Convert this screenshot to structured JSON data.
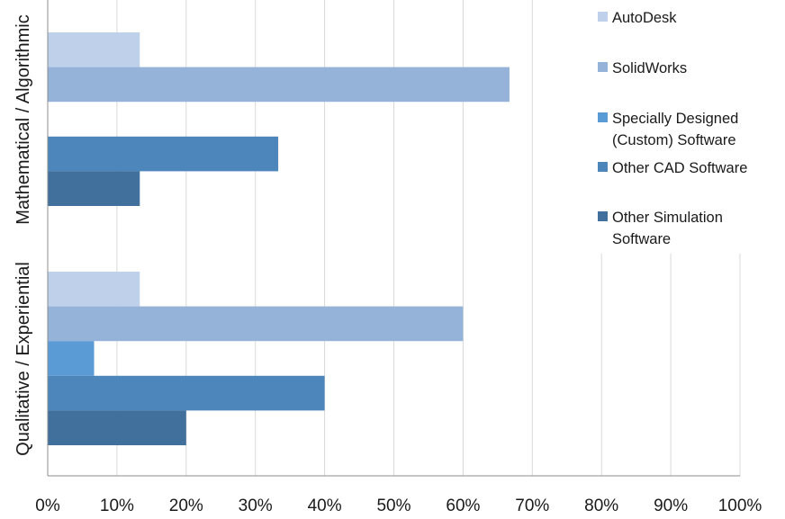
{
  "chart_data": {
    "type": "bar",
    "orientation": "horizontal",
    "title": "",
    "xlabel": "",
    "ylabel": "",
    "xlim": [
      0,
      100
    ],
    "x_ticks": [
      "0%",
      "10%",
      "20%",
      "30%",
      "40%",
      "50%",
      "60%",
      "70%",
      "80%",
      "90%",
      "100%"
    ],
    "grid": true,
    "legend_position": "top-right",
    "categories": [
      "Mathematical / Algorithmic",
      "Qualitative / Experiential"
    ],
    "series": [
      {
        "name": "AutoDesk",
        "legend_lines": [
          "AutoDesk"
        ],
        "color": "#bed0ea",
        "values": [
          13.3,
          13.3
        ]
      },
      {
        "name": "SolidWorks",
        "legend_lines": [
          "SolidWorks"
        ],
        "color": "#95b3d9",
        "values": [
          66.7,
          60.0
        ]
      },
      {
        "name": "Specially Designed (Custom) Software",
        "legend_lines": [
          "Specially Designed",
          "(Custom) Software"
        ],
        "color": "#5b9bd5",
        "values": [
          0,
          6.7
        ]
      },
      {
        "name": "Other CAD Software",
        "legend_lines": [
          "Other CAD Software"
        ],
        "color": "#4d86bb",
        "values": [
          33.3,
          40.0
        ]
      },
      {
        "name": "Other Simulation Software",
        "legend_lines": [
          "Other Simulation",
          "Software"
        ],
        "color": "#41709d",
        "values": [
          13.3,
          20.0
        ]
      }
    ]
  }
}
